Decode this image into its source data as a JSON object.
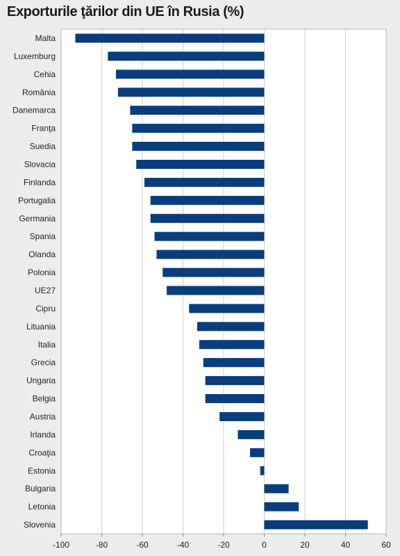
{
  "title": "Exporturile ţărilor din UE în Rusia (%)",
  "colors": {
    "bar": "#0a3d7c",
    "plot_bg": "#ffffff",
    "page_bg": "#ececec",
    "grid": "#cfcfcf"
  },
  "chart_data": {
    "type": "bar",
    "orientation": "horizontal",
    "title": "Exporturile ţărilor din UE în Rusia (%)",
    "xlabel": "",
    "ylabel": "",
    "xlim": [
      -100,
      60
    ],
    "xticks": [
      -100,
      -80,
      -60,
      -40,
      -20,
      0,
      20,
      40,
      60
    ],
    "grid": true,
    "categories": [
      "Malta",
      "Luxemburg",
      "Cehia",
      "România",
      "Danemarca",
      "Franţa",
      "Suedia",
      "Slovacia",
      "Finlanda",
      "Portugalia",
      "Germania",
      "Spania",
      "Olanda",
      "Polonia",
      "UE27",
      "Cipru",
      "Lituania",
      "Italia",
      "Grecia",
      "Ungaria",
      "Belgia",
      "Austria",
      "Irlanda",
      "Croaţia",
      "Estonia",
      "Bulgaria",
      "Letonia",
      "Slovenia"
    ],
    "values": [
      -93,
      -77,
      -73,
      -72,
      -66,
      -65,
      -65,
      -63,
      -59,
      -56,
      -56,
      -54,
      -53,
      -50,
      -48,
      -37,
      -33,
      -32,
      -30,
      -29,
      -29,
      -22,
      -13,
      -7,
      -2,
      12,
      17,
      51
    ]
  }
}
